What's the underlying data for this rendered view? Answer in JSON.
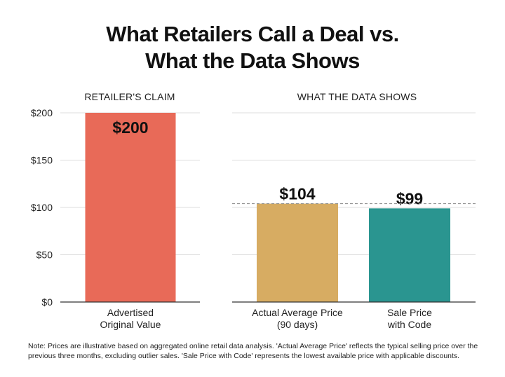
{
  "title_lines": [
    "What Retailers Call a Deal vs.",
    "What the Data Shows"
  ],
  "note": "Note: Prices are illustrative based on aggregated online retail data analysis. 'Actual Average Price' reflects the typical selling price over the previous three months, excluding outlier sales. 'Sale Price with Code' represents the lowest available price with applicable discounts.",
  "chart_data": {
    "type": "bar",
    "title": "What Retailers Call a Deal vs. What the Data Shows",
    "ylim": [
      0,
      200
    ],
    "y_ticks": [
      0,
      50,
      100,
      150,
      200
    ],
    "y_tick_labels": [
      "$0",
      "$50",
      "$100",
      "$150",
      "$200"
    ],
    "reference_line": 104,
    "grid": true,
    "panels": [
      {
        "header": "RETAILER'S CLAIM",
        "bars": [
          {
            "label": [
              "Advertised",
              "Original Value"
            ],
            "value": 200,
            "data_label": "$200",
            "color": "#e86a58",
            "label_inside": true
          }
        ]
      },
      {
        "header": "WHAT THE DATA SHOWS",
        "bars": [
          {
            "label": [
              "Actual Average Price",
              "(90 days)"
            ],
            "value": 104,
            "data_label": "$104",
            "color": "#d7ac62",
            "label_inside": false
          },
          {
            "label": [
              "Sale Price",
              "with Code"
            ],
            "value": 99,
            "data_label": "$99",
            "color": "#2a9590",
            "label_inside": false
          }
        ]
      }
    ]
  }
}
